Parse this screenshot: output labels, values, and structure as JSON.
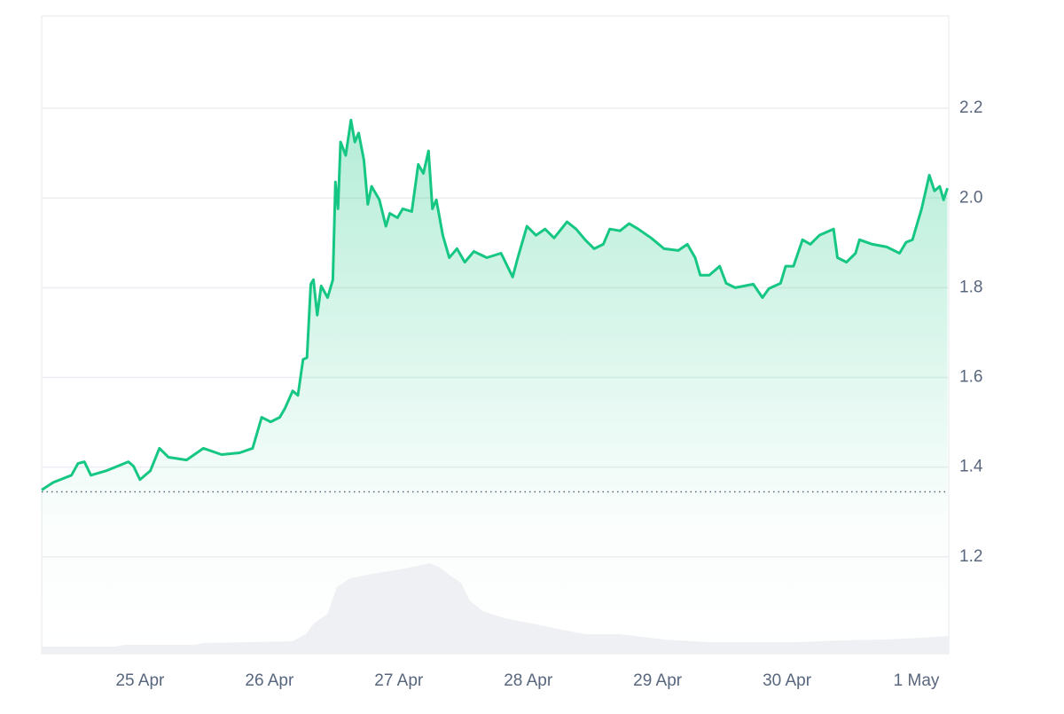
{
  "chart_data": {
    "type": "line",
    "x_scale": "day of April",
    "xlim": [
      24.24,
      31.25
    ],
    "xticks": [
      {
        "value": 25,
        "label": "25 Apr"
      },
      {
        "value": 26,
        "label": "26 Apr"
      },
      {
        "value": 27,
        "label": "27 Apr"
      },
      {
        "value": 28,
        "label": "28 Apr"
      },
      {
        "value": 29,
        "label": "29 Apr"
      },
      {
        "value": 30,
        "label": "30 Apr"
      },
      {
        "value": 31,
        "label": "1 May"
      }
    ],
    "ylim": [
      0.984,
      2.406
    ],
    "yticks": [
      1.2,
      1.4,
      1.6,
      1.8,
      {
        "value": 2,
        "label": "2.0"
      },
      2.2
    ],
    "y2lim": [
      0,
      720
    ],
    "grid": true,
    "reference_line": 1.345,
    "series": [
      {
        "color": "#16c784",
        "x": [
          24.24,
          24.33,
          24.47,
          24.52,
          24.57,
          24.62,
          24.74,
          24.91,
          24.95,
          25.0,
          25.08,
          25.15,
          25.22,
          25.36,
          25.49,
          25.63,
          25.77,
          25.87,
          25.94,
          26.01,
          26.08,
          26.12,
          26.18,
          26.22,
          26.26,
          26.29,
          26.32,
          26.34,
          26.37,
          26.4,
          26.45,
          26.49,
          26.51,
          26.53,
          26.55,
          26.59,
          26.63,
          26.66,
          26.69,
          26.73,
          26.76,
          26.79,
          26.85,
          26.9,
          26.93,
          26.99,
          27.03,
          27.1,
          27.15,
          27.19,
          27.23,
          27.26,
          27.29,
          27.34,
          27.39,
          27.45,
          27.51,
          27.58,
          27.68,
          27.79,
          27.88,
          27.92,
          27.99,
          28.06,
          28.13,
          28.2,
          28.3,
          28.37,
          28.44,
          28.51,
          28.58,
          28.63,
          28.71,
          28.78,
          28.85,
          28.95,
          29.05,
          29.16,
          29.23,
          29.29,
          29.33,
          29.4,
          29.48,
          29.53,
          29.6,
          29.74,
          29.81,
          29.86,
          29.95,
          29.99,
          30.05,
          30.12,
          30.18,
          30.25,
          30.36,
          30.39,
          30.46,
          30.53,
          30.56,
          30.66,
          30.77,
          30.87,
          30.92,
          30.97,
          31.04,
          31.1,
          31.14,
          31.18,
          31.21,
          31.24
        ],
        "values": [
          1.349,
          1.366,
          1.382,
          1.408,
          1.412,
          1.382,
          1.392,
          1.412,
          1.402,
          1.372,
          1.392,
          1.442,
          1.422,
          1.416,
          1.442,
          1.428,
          1.432,
          1.442,
          1.511,
          1.501,
          1.511,
          1.531,
          1.57,
          1.56,
          1.64,
          1.644,
          1.808,
          1.818,
          1.739,
          1.804,
          1.778,
          1.818,
          2.036,
          1.976,
          2.125,
          2.095,
          2.174,
          2.125,
          2.145,
          2.085,
          1.986,
          2.026,
          1.996,
          1.937,
          1.966,
          1.956,
          1.976,
          1.97,
          2.075,
          2.055,
          2.105,
          1.976,
          1.996,
          1.917,
          1.867,
          1.887,
          1.857,
          1.881,
          1.867,
          1.877,
          1.824,
          1.867,
          1.937,
          1.917,
          1.931,
          1.911,
          1.947,
          1.931,
          1.907,
          1.887,
          1.897,
          1.931,
          1.927,
          1.943,
          1.931,
          1.911,
          1.887,
          1.883,
          1.897,
          1.867,
          1.828,
          1.828,
          1.848,
          1.81,
          1.8,
          1.808,
          1.778,
          1.798,
          1.81,
          1.848,
          1.848,
          1.907,
          1.897,
          1.917,
          1.931,
          1.867,
          1.857,
          1.877,
          1.907,
          1.897,
          1.891,
          1.877,
          1.901,
          1.907,
          1.976,
          2.051,
          2.016,
          2.026,
          1.996,
          2.022
        ]
      },
      {
        "color": "#eef0f3",
        "axis": "y2",
        "x": [
          24.24,
          24.81,
          24.88,
          25.42,
          25.49,
          26.18,
          26.28,
          26.35,
          26.45,
          26.52,
          26.62,
          26.79,
          27.0,
          27.17,
          27.24,
          27.31,
          27.38,
          27.48,
          27.55,
          27.65,
          27.82,
          28.03,
          28.23,
          28.44,
          28.71,
          29.05,
          29.4,
          30.08,
          30.42,
          30.77,
          31.04,
          31.25
        ],
        "values": [
          8,
          8,
          10,
          10,
          12,
          14,
          22,
          35,
          45,
          75,
          85,
          90,
          95,
          100,
          102,
          98,
          90,
          80,
          60,
          48,
          40,
          34,
          28,
          22,
          22,
          16,
          13,
          13,
          15,
          16,
          18,
          20
        ]
      }
    ]
  }
}
